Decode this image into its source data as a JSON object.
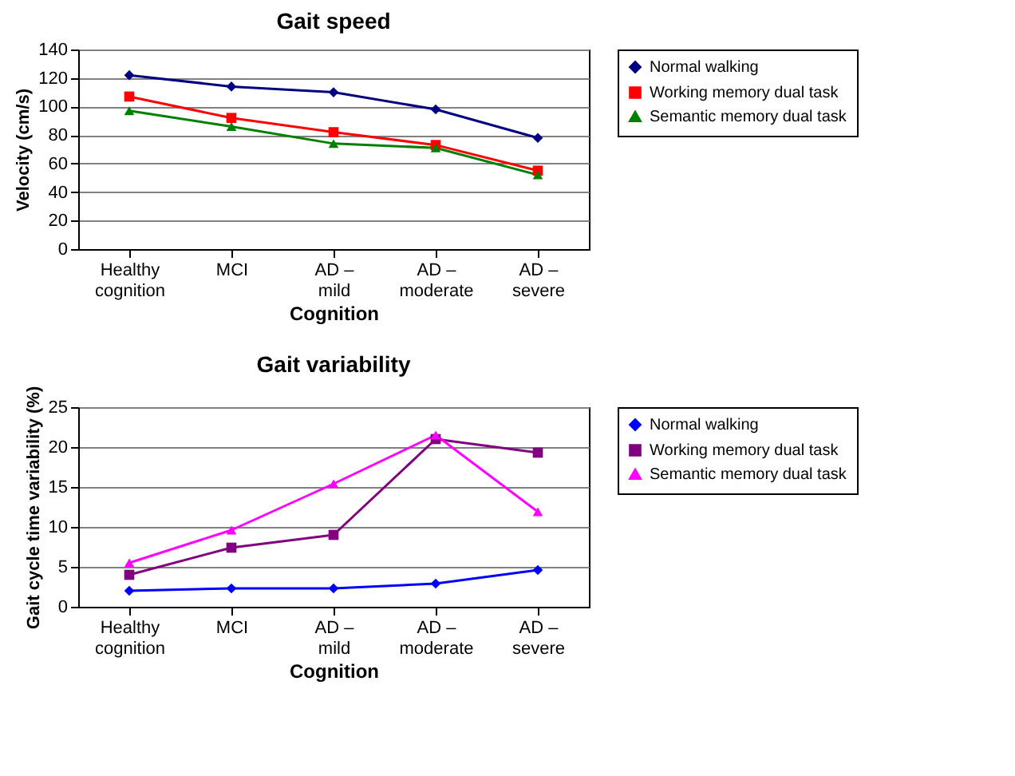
{
  "chart_data": [
    {
      "type": "line",
      "title": "Gait speed",
      "xlabel": "Cognition",
      "ylabel": "Velocity (cm/s)",
      "categories": [
        "Healthy cognition",
        "MCI",
        "AD – mild",
        "AD – moderate",
        "AD – severe"
      ],
      "series": [
        {
          "name": "Normal walking",
          "color": "#000080",
          "marker": "diamond",
          "values": [
            122,
            114,
            110,
            98,
            78
          ]
        },
        {
          "name": "Working memory dual task",
          "color": "#ff0000",
          "marker": "square",
          "values": [
            107,
            92,
            82,
            73,
            55
          ]
        },
        {
          "name": "Semantic memory dual task",
          "color": "#008000",
          "marker": "triangle",
          "values": [
            97,
            86,
            74,
            71,
            52
          ]
        }
      ],
      "ylim": [
        0,
        140
      ],
      "yticks": [
        0,
        20,
        40,
        60,
        80,
        100,
        120,
        140
      ],
      "grid": "y",
      "legend": "right"
    },
    {
      "type": "line",
      "title": "Gait variability",
      "xlabel": "Cognition",
      "ylabel": "Gait cycle time variability  (%)",
      "categories": [
        "Healthy cognition",
        "MCI",
        "AD – mild",
        "AD – moderate",
        "AD – severe"
      ],
      "series": [
        {
          "name": "Normal walking",
          "color": "#0000ff",
          "marker": "diamond",
          "values": [
            2,
            2.3,
            2.3,
            2.9,
            4.6
          ]
        },
        {
          "name": "Working memory dual task",
          "color": "#800080",
          "marker": "square",
          "values": [
            4,
            7.4,
            9,
            21,
            19.3
          ]
        },
        {
          "name": "Semantic memory dual task",
          "color": "#ff00ff",
          "marker": "triangle",
          "values": [
            5.5,
            9.6,
            15.4,
            21.5,
            11.9
          ]
        }
      ],
      "ylim": [
        0,
        25
      ],
      "yticks": [
        0,
        5,
        10,
        15,
        20,
        25
      ],
      "grid": "y",
      "legend": "right"
    }
  ]
}
